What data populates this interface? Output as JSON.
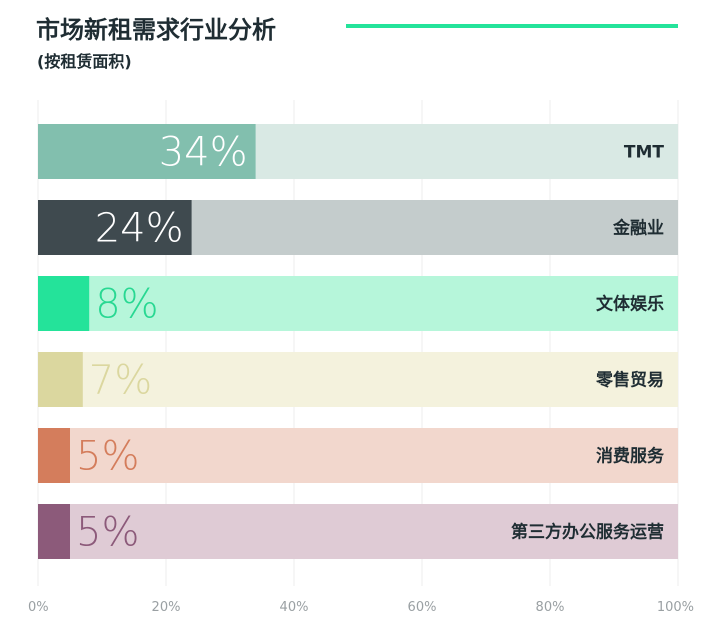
{
  "header": {
    "title": "市场新租需求行业分析",
    "subtitle": "(按租赁面积)"
  },
  "chart_data": {
    "type": "bar",
    "orientation": "horizontal",
    "categories": [
      "TMT",
      "金融业",
      "文体娱乐",
      "零售贸易",
      "消费服务",
      "第三方办公服务运营"
    ],
    "values": [
      34,
      24,
      8,
      7,
      5,
      5
    ],
    "value_labels": [
      "34%",
      "24%",
      "8%",
      "7%",
      "5%",
      "5%"
    ],
    "xlim": [
      0,
      100
    ],
    "xticks": [
      "0%",
      "20%",
      "40%",
      "60%",
      "80%",
      "100%"
    ],
    "grid": true,
    "colors": [
      {
        "fill": "#82bfae",
        "track": "#d9e9e4",
        "label": "#ffffff"
      },
      {
        "fill": "#3f4a4f",
        "track": "#c4cccc",
        "label": "#ffffff"
      },
      {
        "fill": "#24e39a",
        "track": "#b6f6da",
        "label": "#28d892"
      },
      {
        "fill": "#dbd79f",
        "track": "#f4f2dd",
        "label": "#dbd79f"
      },
      {
        "fill": "#d47d5c",
        "track": "#f2d7cd",
        "label": "#d47d5c"
      },
      {
        "fill": "#8c5a7a",
        "track": "#dfcbd5",
        "label": "#8c5a7a"
      }
    ]
  }
}
